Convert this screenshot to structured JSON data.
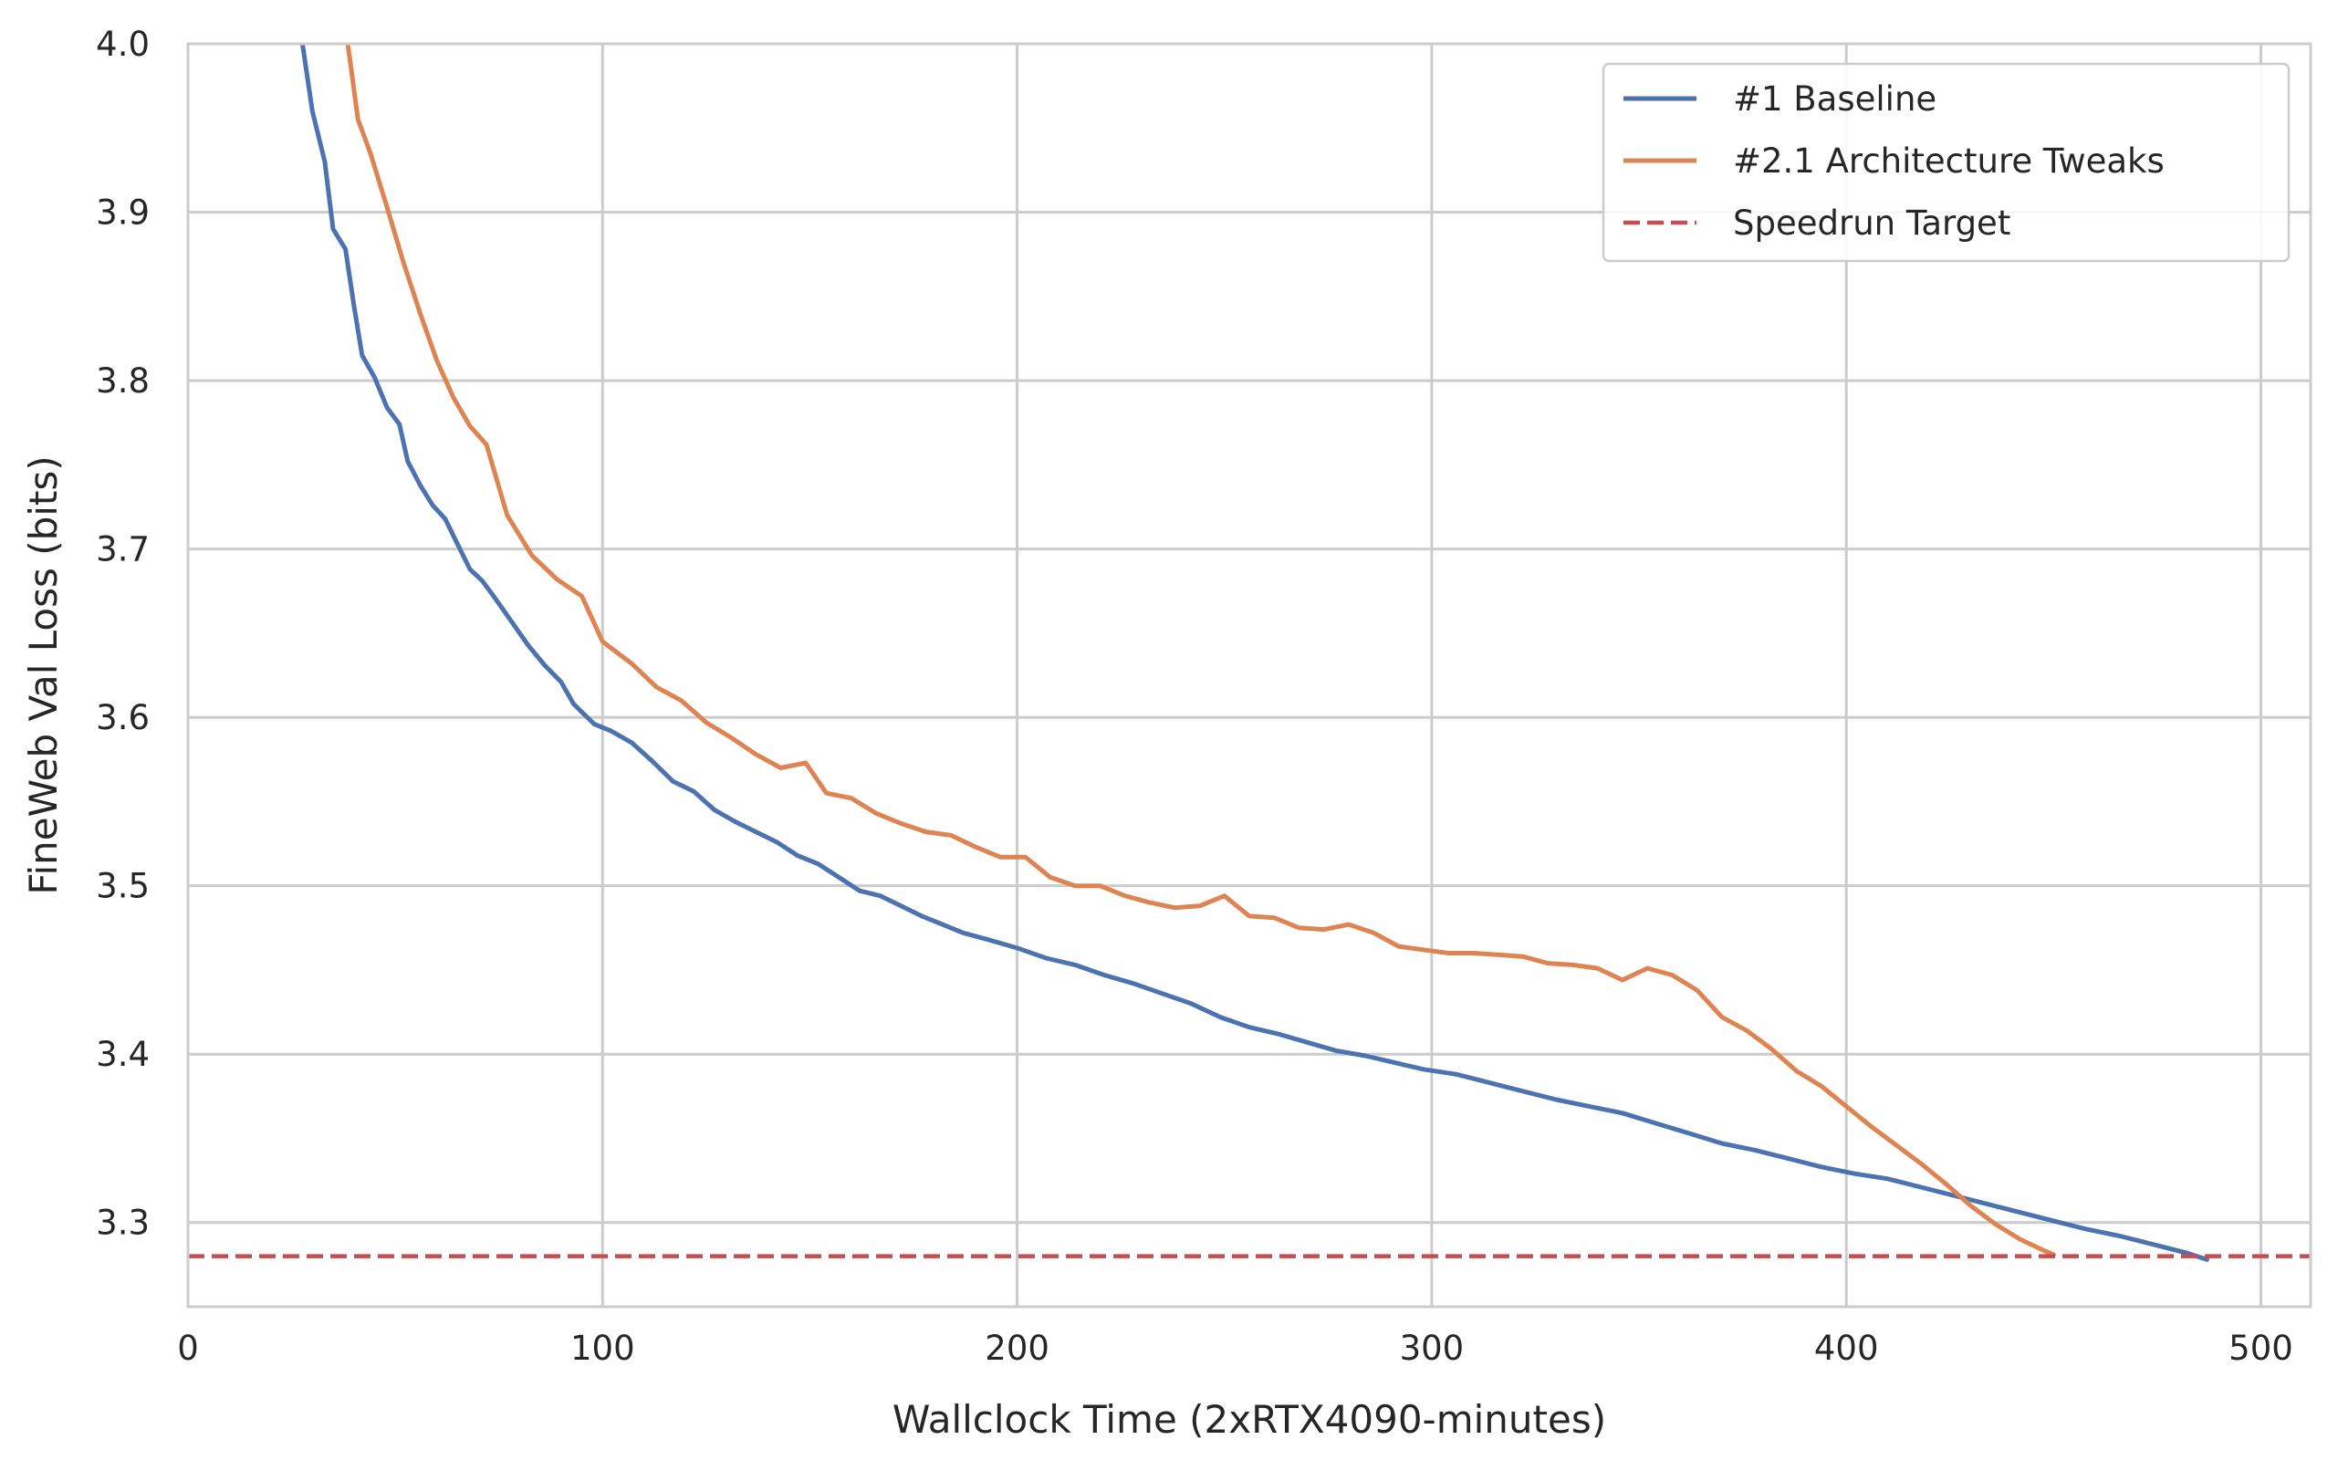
{
  "chart_data": {
    "type": "line",
    "title": "",
    "xlabel": "Wallclock Time (2xRTX4090-minutes)",
    "ylabel": "FineWeb Val Loss (bits)",
    "xlim": [
      0,
      512
    ],
    "ylim": [
      3.25,
      4.0
    ],
    "xticks": [
      0,
      100,
      200,
      300,
      400,
      500
    ],
    "yticks": [
      3.3,
      3.4,
      3.5,
      3.6,
      3.7,
      3.8,
      3.9,
      4.0
    ],
    "grid": true,
    "legend": "top-right",
    "series": [
      {
        "name": "#1 Baseline",
        "color": "#4c72b0",
        "style": "solid",
        "x": [
          27,
          30,
          33,
          35,
          38,
          40,
          42,
          45,
          48,
          51,
          53,
          56,
          59,
          62,
          65,
          68,
          71,
          74,
          78,
          82,
          86,
          90,
          93,
          98,
          102,
          107,
          112,
          117,
          122,
          127,
          132,
          137,
          142,
          147,
          152,
          157,
          162,
          167,
          172,
          177,
          182,
          187,
          193,
          200,
          207,
          214,
          221,
          228,
          235,
          242,
          249,
          256,
          263,
          270,
          277,
          284,
          291,
          298,
          306,
          314,
          322,
          330,
          338,
          346,
          354,
          362,
          370,
          378,
          386,
          394,
          402,
          410,
          418,
          426,
          434,
          442,
          450,
          458,
          466,
          474,
          482,
          487
        ],
        "y": [
          4.01,
          3.96,
          3.93,
          3.89,
          3.878,
          3.845,
          3.815,
          3.802,
          3.784,
          3.774,
          3.752,
          3.738,
          3.726,
          3.718,
          3.703,
          3.688,
          3.681,
          3.671,
          3.657,
          3.643,
          3.631,
          3.621,
          3.608,
          3.596,
          3.592,
          3.585,
          3.574,
          3.562,
          3.556,
          3.545,
          3.538,
          3.532,
          3.526,
          3.518,
          3.513,
          3.505,
          3.497,
          3.494,
          3.488,
          3.482,
          3.477,
          3.472,
          3.468,
          3.463,
          3.457,
          3.453,
          3.447,
          3.442,
          3.436,
          3.43,
          3.422,
          3.416,
          3.412,
          3.407,
          3.402,
          3.399,
          3.395,
          3.391,
          3.388,
          3.383,
          3.378,
          3.373,
          3.369,
          3.365,
          3.359,
          3.353,
          3.347,
          3.343,
          3.338,
          3.333,
          3.329,
          3.326,
          3.321,
          3.316,
          3.311,
          3.306,
          3.301,
          3.296,
          3.292,
          3.287,
          3.282,
          3.278
        ]
      },
      {
        "name": "#2.1 Architecture Tweaks",
        "color": "#dd8452",
        "style": "solid",
        "x": [
          38,
          41,
          44,
          48,
          52,
          56,
          60,
          64,
          68,
          72,
          77,
          83,
          89,
          95,
          100,
          107,
          113,
          119,
          125,
          131,
          137,
          143,
          149,
          154,
          160,
          166,
          172,
          178,
          184,
          190,
          196,
          202,
          208,
          214,
          220,
          226,
          232,
          238,
          244,
          250,
          256,
          262,
          268,
          274,
          280,
          286,
          292,
          298,
          304,
          310,
          316,
          322,
          328,
          334,
          340,
          346,
          352,
          358,
          364,
          370,
          376,
          382,
          388,
          394,
          400,
          406,
          412,
          418,
          424,
          430,
          436,
          442,
          448,
          450
        ],
        "y": [
          4.01,
          3.955,
          3.935,
          3.903,
          3.87,
          3.84,
          3.812,
          3.79,
          3.773,
          3.762,
          3.72,
          3.696,
          3.682,
          3.672,
          3.645,
          3.632,
          3.618,
          3.61,
          3.597,
          3.588,
          3.578,
          3.57,
          3.573,
          3.555,
          3.552,
          3.543,
          3.537,
          3.532,
          3.53,
          3.523,
          3.517,
          3.517,
          3.505,
          3.5,
          3.5,
          3.494,
          3.49,
          3.487,
          3.488,
          3.494,
          3.482,
          3.481,
          3.475,
          3.474,
          3.477,
          3.472,
          3.464,
          3.462,
          3.46,
          3.46,
          3.459,
          3.458,
          3.454,
          3.453,
          3.451,
          3.444,
          3.451,
          3.447,
          3.438,
          3.422,
          3.414,
          3.403,
          3.39,
          3.381,
          3.369,
          3.357,
          3.346,
          3.335,
          3.323,
          3.31,
          3.299,
          3.29,
          3.283,
          3.281
        ]
      },
      {
        "name": "Speedrun Target",
        "color": "#c44e52",
        "style": "dashed",
        "x": [
          0,
          512
        ],
        "y": [
          3.28,
          3.28
        ]
      }
    ]
  }
}
